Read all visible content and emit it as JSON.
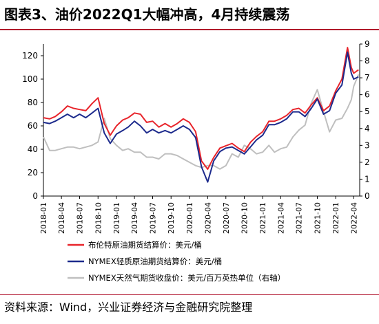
{
  "figure": {
    "title": "图表3、油价2022Q1大幅冲高，4月持续震荡",
    "source": "资料来源：Wind，兴业证券经济与金融研究院整理"
  },
  "chart_data": {
    "type": "line",
    "x_ticks": [
      "2018-01",
      "2018-04",
      "2018-07",
      "2018-10",
      "2019-01",
      "2019-04",
      "2019-07",
      "2019-10",
      "2020-01",
      "2020-04",
      "2020-07",
      "2020-10",
      "2021-01",
      "2021-04",
      "2021-07",
      "2021-10",
      "2022-01",
      "2022-04"
    ],
    "y_left": {
      "lim": [
        0,
        130
      ],
      "ticks": [
        0,
        20,
        40,
        60,
        80,
        100,
        120
      ]
    },
    "y_right": {
      "lim": [
        0,
        9
      ],
      "ticks": [
        0,
        1,
        2,
        3,
        4,
        5,
        6,
        7,
        8,
        9
      ]
    },
    "grid": false,
    "legend_position": "bottom",
    "series": [
      {
        "name": "布伦特原油期货结算价：美元/桶",
        "axis": "left",
        "color": "#e8242b",
        "points": [
          [
            "2018-01",
            67
          ],
          [
            "2018-02",
            66
          ],
          [
            "2018-03",
            68
          ],
          [
            "2018-04",
            72
          ],
          [
            "2018-05",
            77
          ],
          [
            "2018-06",
            75
          ],
          [
            "2018-07",
            74
          ],
          [
            "2018-08",
            73
          ],
          [
            "2018-09",
            79
          ],
          [
            "2018-10",
            84
          ],
          [
            "2018-11",
            62
          ],
          [
            "2018-12",
            52
          ],
          [
            "2019-01",
            60
          ],
          [
            "2019-02",
            65
          ],
          [
            "2019-03",
            67
          ],
          [
            "2019-04",
            71
          ],
          [
            "2019-05",
            70
          ],
          [
            "2019-06",
            63
          ],
          [
            "2019-07",
            64
          ],
          [
            "2019-08",
            59
          ],
          [
            "2019-09",
            62
          ],
          [
            "2019-10",
            59
          ],
          [
            "2019-11",
            62
          ],
          [
            "2019-12",
            66
          ],
          [
            "2020-01",
            63
          ],
          [
            "2020-02",
            55
          ],
          [
            "2020-03",
            30
          ],
          [
            "2020-04",
            23
          ],
          [
            "2020-05",
            33
          ],
          [
            "2020-06",
            41
          ],
          [
            "2020-07",
            43
          ],
          [
            "2020-08",
            45
          ],
          [
            "2020-09",
            41
          ],
          [
            "2020-10",
            38
          ],
          [
            "2020-11",
            46
          ],
          [
            "2020-12",
            51
          ],
          [
            "2021-01",
            55
          ],
          [
            "2021-02",
            64
          ],
          [
            "2021-03",
            64
          ],
          [
            "2021-04",
            66
          ],
          [
            "2021-05",
            69
          ],
          [
            "2021-06",
            74
          ],
          [
            "2021-07",
            75
          ],
          [
            "2021-08",
            71
          ],
          [
            "2021-09",
            78
          ],
          [
            "2021-10",
            84
          ],
          [
            "2021-11",
            73
          ],
          [
            "2021-12",
            77
          ],
          [
            "2022-01",
            90
          ],
          [
            "2022-02",
            100
          ],
          [
            "2022-03",
            127
          ],
          [
            "2022-03-20",
            110
          ],
          [
            "2022-04",
            105
          ],
          [
            "2022-04-25",
            108
          ]
        ]
      },
      {
        "name": "NYMEX轻质原油期货结算价：美元/桶",
        "axis": "left",
        "color": "#1c2a8c",
        "points": [
          [
            "2018-01",
            63
          ],
          [
            "2018-02",
            62
          ],
          [
            "2018-03",
            64
          ],
          [
            "2018-04",
            67
          ],
          [
            "2018-05",
            70
          ],
          [
            "2018-06",
            67
          ],
          [
            "2018-07",
            70
          ],
          [
            "2018-08",
            67
          ],
          [
            "2018-09",
            71
          ],
          [
            "2018-10",
            75
          ],
          [
            "2018-11",
            54
          ],
          [
            "2018-12",
            45
          ],
          [
            "2019-01",
            53
          ],
          [
            "2019-02",
            56
          ],
          [
            "2019-03",
            59
          ],
          [
            "2019-04",
            64
          ],
          [
            "2019-05",
            60
          ],
          [
            "2019-06",
            54
          ],
          [
            "2019-07",
            57
          ],
          [
            "2019-08",
            54
          ],
          [
            "2019-09",
            56
          ],
          [
            "2019-10",
            54
          ],
          [
            "2019-11",
            57
          ],
          [
            "2019-12",
            60
          ],
          [
            "2020-01",
            57
          ],
          [
            "2020-02",
            50
          ],
          [
            "2020-03",
            25
          ],
          [
            "2020-04",
            12
          ],
          [
            "2020-05",
            30
          ],
          [
            "2020-06",
            38
          ],
          [
            "2020-07",
            41
          ],
          [
            "2020-08",
            42
          ],
          [
            "2020-09",
            39
          ],
          [
            "2020-10",
            36
          ],
          [
            "2020-11",
            42
          ],
          [
            "2020-12",
            48
          ],
          [
            "2021-01",
            52
          ],
          [
            "2021-02",
            61
          ],
          [
            "2021-03",
            61
          ],
          [
            "2021-04",
            63
          ],
          [
            "2021-05",
            66
          ],
          [
            "2021-06",
            72
          ],
          [
            "2021-07",
            72
          ],
          [
            "2021-08",
            68
          ],
          [
            "2021-09",
            75
          ],
          [
            "2021-10",
            83
          ],
          [
            "2021-11",
            70
          ],
          [
            "2021-12",
            73
          ],
          [
            "2022-01",
            88
          ],
          [
            "2022-02",
            95
          ],
          [
            "2022-03",
            123
          ],
          [
            "2022-03-20",
            105
          ],
          [
            "2022-04",
            100
          ],
          [
            "2022-04-25",
            102
          ]
        ]
      },
      {
        "name": "NYMEX天然气期货收盘价：美元/百万英热单位（右轴）",
        "axis": "right",
        "color": "#bfbfbf",
        "points": [
          [
            "2018-01",
            3.5
          ],
          [
            "2018-02",
            2.7
          ],
          [
            "2018-03",
            2.7
          ],
          [
            "2018-04",
            2.8
          ],
          [
            "2018-05",
            2.9
          ],
          [
            "2018-06",
            2.9
          ],
          [
            "2018-07",
            2.8
          ],
          [
            "2018-08",
            2.9
          ],
          [
            "2018-09",
            3.0
          ],
          [
            "2018-10",
            3.2
          ],
          [
            "2018-11",
            4.6
          ],
          [
            "2018-12",
            3.4
          ],
          [
            "2019-01",
            3.0
          ],
          [
            "2019-02",
            2.7
          ],
          [
            "2019-03",
            2.8
          ],
          [
            "2019-04",
            2.6
          ],
          [
            "2019-05",
            2.6
          ],
          [
            "2019-06",
            2.3
          ],
          [
            "2019-07",
            2.3
          ],
          [
            "2019-08",
            2.2
          ],
          [
            "2019-09",
            2.5
          ],
          [
            "2019-10",
            2.5
          ],
          [
            "2019-11",
            2.4
          ],
          [
            "2019-12",
            2.2
          ],
          [
            "2020-01",
            2.0
          ],
          [
            "2020-02",
            1.8
          ],
          [
            "2020-03",
            1.7
          ],
          [
            "2020-04",
            1.8
          ],
          [
            "2020-05",
            1.8
          ],
          [
            "2020-06",
            1.6
          ],
          [
            "2020-07",
            1.8
          ],
          [
            "2020-08",
            2.5
          ],
          [
            "2020-09",
            2.3
          ],
          [
            "2020-10",
            3.0
          ],
          [
            "2020-11",
            2.8
          ],
          [
            "2020-12",
            2.5
          ],
          [
            "2021-01",
            2.6
          ],
          [
            "2021-02",
            3.0
          ],
          [
            "2021-03",
            2.6
          ],
          [
            "2021-04",
            2.8
          ],
          [
            "2021-05",
            2.9
          ],
          [
            "2021-06",
            3.5
          ],
          [
            "2021-07",
            3.9
          ],
          [
            "2021-08",
            4.2
          ],
          [
            "2021-09",
            5.5
          ],
          [
            "2021-10",
            6.3
          ],
          [
            "2021-11",
            5.0
          ],
          [
            "2021-12",
            3.8
          ],
          [
            "2022-01",
            4.5
          ],
          [
            "2022-02",
            4.6
          ],
          [
            "2022-03",
            5.2
          ],
          [
            "2022-03-20",
            5.7
          ],
          [
            "2022-04",
            6.5
          ],
          [
            "2022-04-25",
            7.2
          ]
        ]
      }
    ]
  }
}
